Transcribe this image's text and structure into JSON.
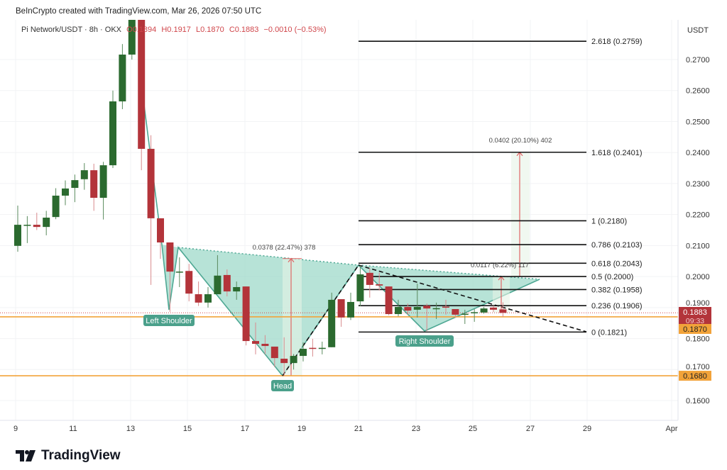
{
  "credit": "BeInCrypto created with TradingView.com, Mar 26, 2026 07:50 UTC",
  "legend": {
    "symbol": "Pi Network/USDT · 8h · OKX",
    "open": "O0.1894",
    "high": "H0.1917",
    "low": "L0.1870",
    "close": "C0.1883",
    "change": "−0.0010 (−0.53%)"
  },
  "brand": "TradingView",
  "colors": {
    "up": "#2b6a2f",
    "down": "#b3343a",
    "pattern": "#9fd9c9",
    "orange": "#f2a33a",
    "fib": "#111111"
  },
  "chart_data": {
    "type": "candlestick",
    "interval": "8h",
    "currency_label": "USDT",
    "ylim": [
      0.155,
      0.28
    ],
    "y_ticks": [
      "0.2700",
      "0.2600",
      "0.2500",
      "0.2400",
      "0.2300",
      "0.2200",
      "0.2100",
      "0.2000",
      "0.1900",
      "0.1800",
      "0.1700",
      "0.1600"
    ],
    "x_ticks": [
      "9",
      "11",
      "13",
      "15",
      "17",
      "19",
      "21",
      "23",
      "25",
      "27",
      "29",
      "Apr"
    ],
    "candles_ohlc": [
      [
        0.2099,
        0.2229,
        0.208,
        0.2167
      ],
      [
        0.2167,
        0.2195,
        0.2108,
        0.2167
      ],
      [
        0.2167,
        0.2206,
        0.215,
        0.216
      ],
      [
        0.216,
        0.2212,
        0.2133,
        0.219
      ],
      [
        0.2192,
        0.2285,
        0.2185,
        0.2261
      ],
      [
        0.2261,
        0.231,
        0.223,
        0.2284
      ],
      [
        0.2286,
        0.2329,
        0.224,
        0.2311
      ],
      [
        0.2314,
        0.2366,
        0.228,
        0.2343
      ],
      [
        0.2343,
        0.2364,
        0.2212,
        0.2254
      ],
      [
        0.2254,
        0.237,
        0.2184,
        0.2359
      ],
      [
        0.2359,
        0.26,
        0.235,
        0.2565
      ],
      [
        0.2565,
        0.275,
        0.254,
        0.2716
      ],
      [
        0.2716,
        0.29,
        0.27,
        0.285
      ],
      [
        0.285,
        0.288,
        0.2343,
        0.2412
      ],
      [
        0.2412,
        0.2456,
        0.1973,
        0.2188
      ],
      [
        0.2188,
        0.2188,
        0.2057,
        0.211
      ],
      [
        0.211,
        0.211,
        0.1886,
        0.2016
      ],
      [
        0.2016,
        0.2062,
        0.1966,
        0.2016
      ],
      [
        0.2018,
        0.2041,
        0.192,
        0.1945
      ],
      [
        0.1943,
        0.1984,
        0.1905,
        0.1916
      ],
      [
        0.1916,
        0.1966,
        0.19,
        0.1943
      ],
      [
        0.1943,
        0.2069,
        0.1943,
        0.2003
      ],
      [
        0.2005,
        0.2023,
        0.1936,
        0.1952
      ],
      [
        0.1952,
        0.1984,
        0.1925,
        0.1966
      ],
      [
        0.1968,
        0.1968,
        0.1778,
        0.1792
      ],
      [
        0.1792,
        0.1852,
        0.1749,
        0.1783
      ],
      [
        0.1783,
        0.1811,
        0.1749,
        0.1776
      ],
      [
        0.1774,
        0.1774,
        0.1708,
        0.1737
      ],
      [
        0.1735,
        0.1804,
        0.168,
        0.1721
      ],
      [
        0.1721,
        0.175,
        0.17,
        0.1744
      ],
      [
        0.1744,
        0.1788,
        0.1726,
        0.1767
      ],
      [
        0.177,
        0.1799,
        0.1742,
        0.1768
      ],
      [
        0.1768,
        0.179,
        0.1749,
        0.177
      ],
      [
        0.1772,
        0.1948,
        0.1772,
        0.1925
      ],
      [
        0.1927,
        0.1927,
        0.1838,
        0.1868
      ],
      [
        0.1868,
        0.1948,
        0.186,
        0.1918
      ],
      [
        0.192,
        0.2035,
        0.1904,
        0.2007
      ],
      [
        0.2012,
        0.2028,
        0.1932,
        0.1973
      ],
      [
        0.1975,
        0.2012,
        0.1955,
        0.1971
      ],
      [
        0.1968,
        0.1968,
        0.1875,
        0.1879
      ],
      [
        0.1879,
        0.1925,
        0.1872,
        0.1902
      ],
      [
        0.1902,
        0.1913,
        0.1877,
        0.189
      ],
      [
        0.1893,
        0.1977,
        0.1868,
        0.1902
      ],
      [
        0.1906,
        0.1913,
        0.1824,
        0.1897
      ],
      [
        0.1897,
        0.1916,
        0.1863,
        0.1898
      ],
      [
        0.1903,
        0.1925,
        0.1877,
        0.1901
      ],
      [
        0.1895,
        0.1895,
        0.1868,
        0.1877
      ],
      [
        0.1878,
        0.1893,
        0.1847,
        0.188
      ],
      [
        0.1884,
        0.1895,
        0.1854,
        0.1885
      ],
      [
        0.1884,
        0.1902,
        0.188,
        0.1897
      ],
      [
        0.19,
        0.1906,
        0.1886,
        0.1893
      ],
      [
        0.1894,
        0.1917,
        0.187,
        0.1883
      ]
    ],
    "fib_levels": [
      {
        "label": "2.618 (0.2759)",
        "price": 0.2759
      },
      {
        "label": "1.618 (0.2401)",
        "price": 0.2401
      },
      {
        "label": "1 (0.2180)",
        "price": 0.218
      },
      {
        "label": "0.786 (0.2103)",
        "price": 0.2103
      },
      {
        "label": "0.618 (0.2043)",
        "price": 0.2043
      },
      {
        "label": "0.5 (0.2000)",
        "price": 0.2
      },
      {
        "label": "0.382 (0.1958)",
        "price": 0.1958
      },
      {
        "label": "0.236 (0.1906)",
        "price": 0.1906
      },
      {
        "label": "0 (0.1821)",
        "price": 0.1821
      }
    ],
    "horizontal_levels": [
      {
        "label": "0.1870",
        "price": 0.187,
        "color": "#f2a33a"
      },
      {
        "label": "0.1680",
        "price": 0.168,
        "color": "#f2a33a"
      }
    ],
    "current_price": {
      "label": "0.1883",
      "countdown": "09:33",
      "price": 0.1883
    },
    "pattern_labels": {
      "left": "Left Shoulder",
      "head": "Head",
      "right": "Right Shoulder"
    },
    "measurements": [
      {
        "label": "0.0378 (22.47%) 378",
        "from": 0.168,
        "to": 0.2058
      },
      {
        "label": "0.0117 (6.22%) 117",
        "from": 0.1883,
        "to": 0.2
      },
      {
        "label": "0.0402 (20.10%) 402",
        "from": 0.2,
        "to": 0.2401
      }
    ]
  }
}
